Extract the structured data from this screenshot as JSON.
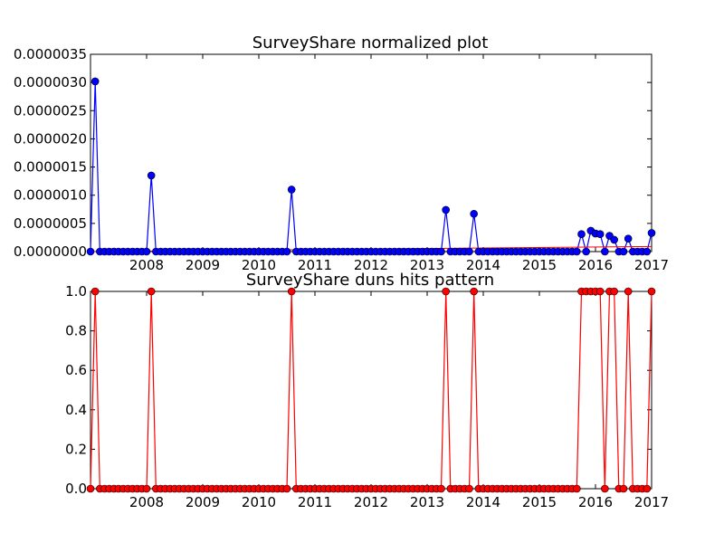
{
  "chart_data": [
    {
      "type": "line",
      "title": "SurveyShare normalized plot",
      "xlabel": "",
      "ylabel": "",
      "xlim": [
        2007.0,
        2017.0
      ],
      "ylim": [
        0,
        3.5e-06
      ],
      "x_ticks": [
        "2008",
        "2009",
        "2010",
        "2011",
        "2012",
        "2013",
        "2014",
        "2015",
        "2016",
        "2017"
      ],
      "y_ticks": [
        "0.0000000",
        "0.0000005",
        "0.0000010",
        "0.0000015",
        "0.0000020",
        "0.0000025",
        "0.0000030",
        "0.0000035"
      ],
      "grid": false,
      "series": [
        {
          "color": "#0000ff",
          "marker": "circle",
          "spikes": [
            {
              "x": 2007.1,
              "y": 3.02e-06
            },
            {
              "x": 2008.1,
              "y": 1.35e-06
            },
            {
              "x": 2010.6,
              "y": 1.1e-06
            },
            {
              "x": 2013.3,
              "y": 7.4e-07
            },
            {
              "x": 2013.8,
              "y": 6.7e-07
            },
            {
              "x": 2015.75,
              "y": 3.1e-07
            },
            {
              "x": 2015.9,
              "y": 3.7e-07
            },
            {
              "x": 2016.0,
              "y": 3.2e-07
            },
            {
              "x": 2016.1,
              "y": 3.1e-07
            },
            {
              "x": 2016.25,
              "y": 2.8e-07
            },
            {
              "x": 2016.33,
              "y": 2.1e-07
            },
            {
              "x": 2016.6,
              "y": 2.3e-07
            },
            {
              "x": 2017.0,
              "y": 3.3e-07
            }
          ],
          "baseline": 0
        },
        {
          "color": "#ff0000",
          "marker": "none",
          "trend": [
            {
              "x": 2007.0,
              "y": 0.0
            },
            {
              "x": 2017.0,
              "y": 9e-08
            }
          ]
        }
      ]
    },
    {
      "type": "line",
      "title": "SurveyShare duns hits pattern",
      "xlabel": "",
      "ylabel": "",
      "xlim": [
        2007.0,
        2017.0
      ],
      "ylim": [
        0,
        1.0
      ],
      "x_ticks": [
        "2008",
        "2009",
        "2010",
        "2011",
        "2012",
        "2013",
        "2014",
        "2015",
        "2016",
        "2017"
      ],
      "y_ticks": [
        "0.0",
        "0.2",
        "0.4",
        "0.6",
        "0.8",
        "1.0"
      ],
      "grid": false,
      "series": [
        {
          "color": "#ff0000",
          "marker": "circle",
          "ones": [
            2007.1,
            2008.1,
            2010.6,
            2013.3,
            2013.8,
            2015.75,
            2015.83,
            2015.9,
            2016.0,
            2016.1,
            2016.25,
            2016.33,
            2016.6,
            2017.0
          ],
          "baseline": 0
        }
      ]
    }
  ]
}
